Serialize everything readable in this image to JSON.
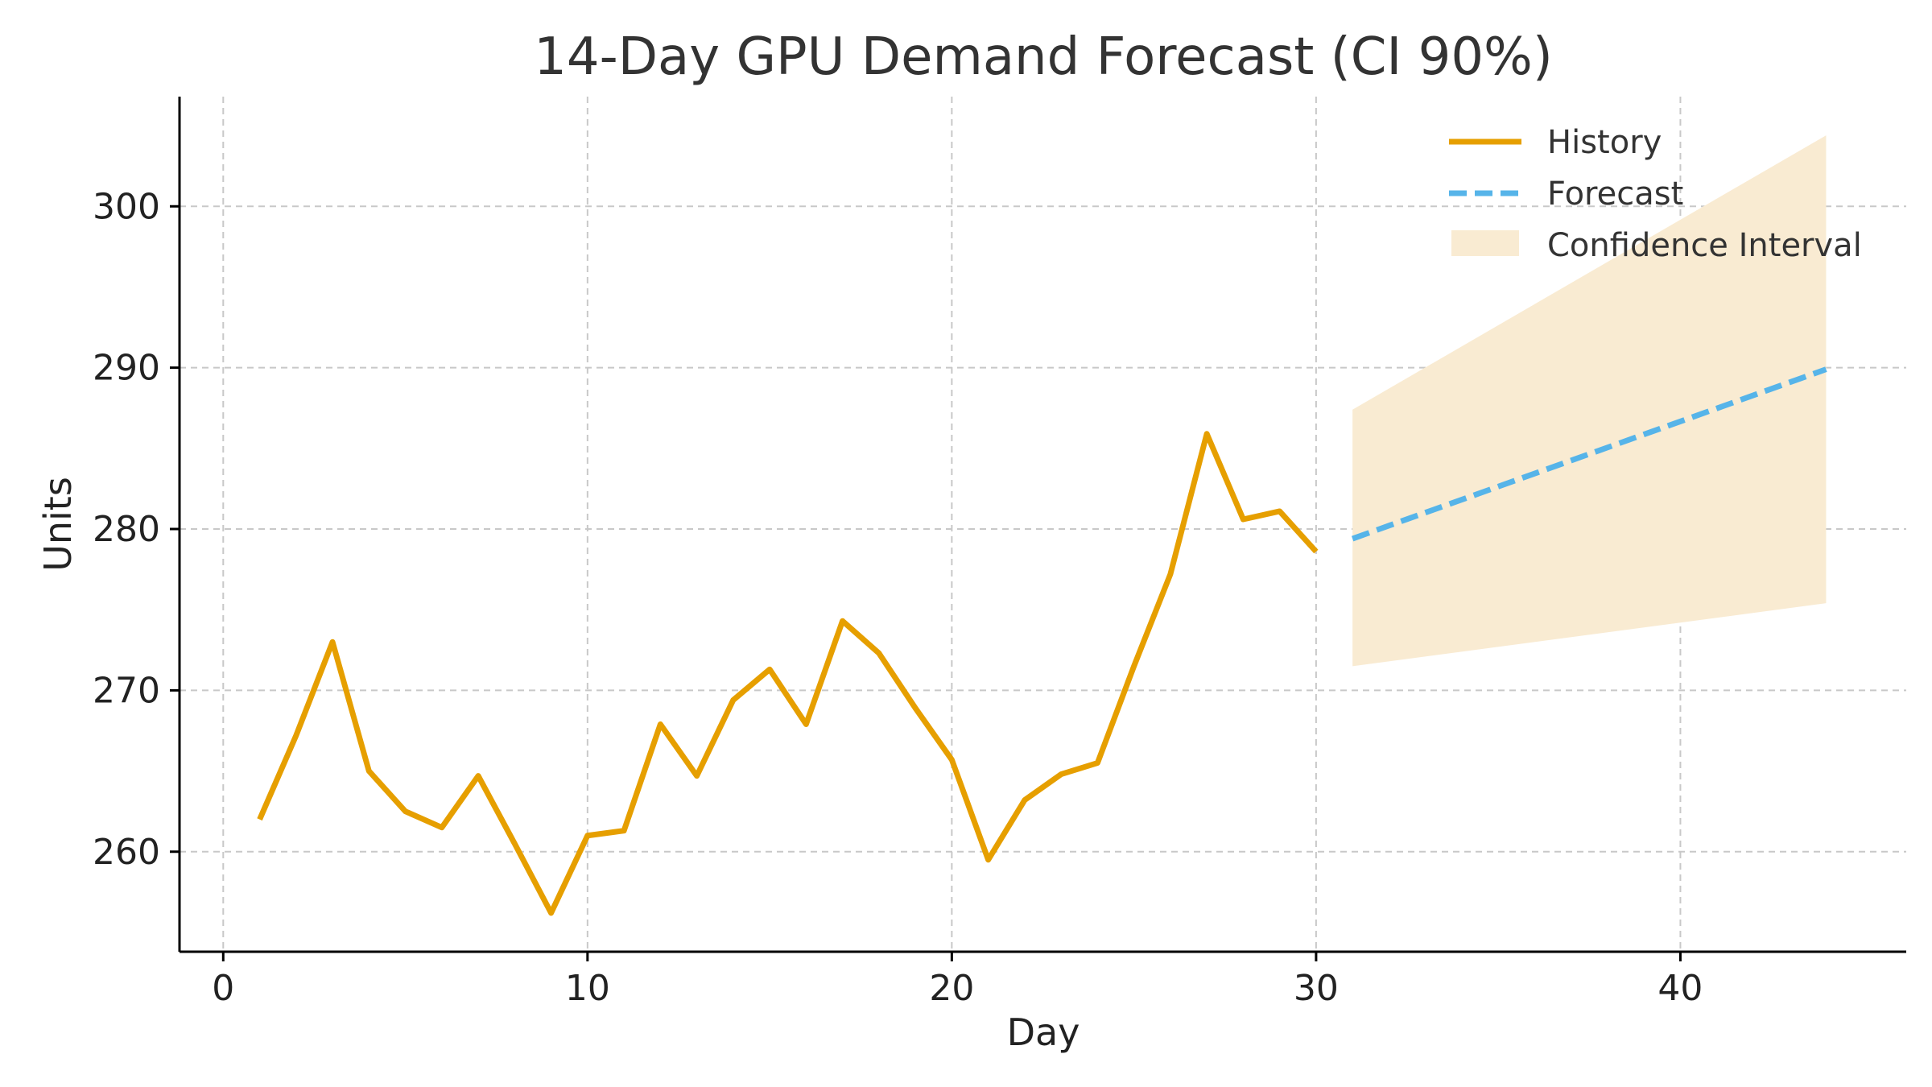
{
  "colors": {
    "history": "#E69F00",
    "forecast": "#56B4E9",
    "ci": "#F9EBD2"
  },
  "chart_data": {
    "type": "line",
    "title": "14-Day GPU Demand Forecast (CI 90%)",
    "xlabel": "Day",
    "ylabel": "Units",
    "xlim": [
      -1.2,
      46.2
    ],
    "ylim": [
      253.8,
      306.8
    ],
    "xticks": [
      0,
      10,
      20,
      30,
      40
    ],
    "yticks": [
      260,
      270,
      280,
      290,
      300
    ],
    "grid": true,
    "legend_position": "top-right",
    "legend": [
      "History",
      "Forecast",
      "Confidence Interval"
    ],
    "series": [
      {
        "name": "History",
        "style": "solid",
        "x": [
          1,
          2,
          3,
          4,
          5,
          6,
          7,
          8,
          9,
          10,
          11,
          12,
          13,
          14,
          15,
          16,
          17,
          18,
          19,
          20,
          21,
          22,
          23,
          24,
          25,
          26,
          27,
          28,
          29,
          30
        ],
        "values": [
          262.0,
          267.2,
          273.0,
          265.0,
          262.5,
          261.5,
          264.7,
          260.5,
          256.2,
          261.0,
          261.3,
          267.9,
          264.7,
          269.4,
          271.3,
          267.9,
          274.3,
          272.3,
          268.9,
          265.7,
          259.5,
          263.2,
          264.8,
          265.5,
          271.5,
          277.2,
          285.9,
          280.6,
          281.1,
          278.6
        ]
      },
      {
        "name": "Forecast",
        "style": "dashed",
        "x": [
          31,
          44
        ],
        "values": [
          279.4,
          289.9
        ]
      }
    ],
    "confidence_interval": {
      "name": "Confidence Interval",
      "x": [
        31,
        44
      ],
      "lower": [
        271.5,
        275.4
      ],
      "upper": [
        287.4,
        304.4
      ]
    }
  }
}
